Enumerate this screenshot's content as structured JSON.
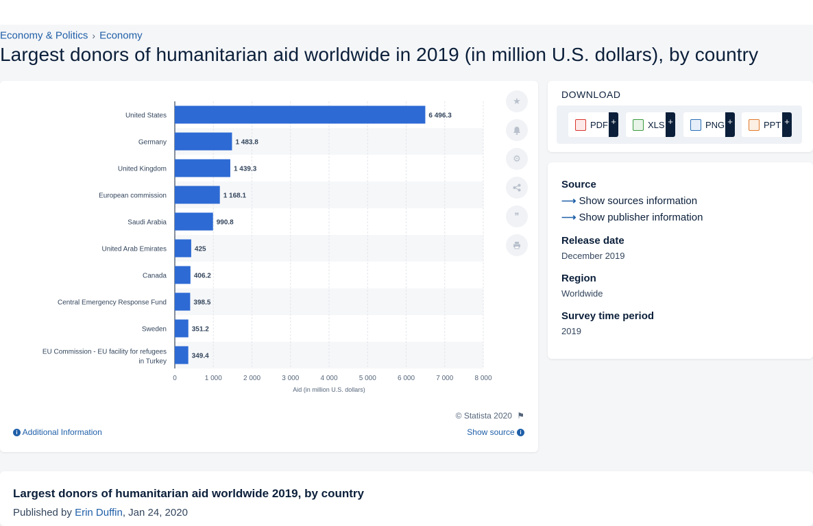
{
  "breadcrumb": {
    "item1": "Economy & Politics",
    "separator": "›",
    "item2": "Economy"
  },
  "page_title": "Largest donors of humanitarian aid worldwide in 2019 (in million U.S. dollars), by country",
  "chart_card": {
    "copyright": "© Statista 2020",
    "additional_info": "Additional Information",
    "show_source": "Show source"
  },
  "download": {
    "title": "DOWNLOAD",
    "buttons": [
      {
        "label": "PDF",
        "plus": "+",
        "icon": "pdf-file-icon",
        "color": "#d9342b"
      },
      {
        "label": "XLS",
        "plus": "+",
        "icon": "xls-file-icon",
        "color": "#3a9a3f"
      },
      {
        "label": "PNG",
        "plus": "+",
        "icon": "png-file-icon",
        "color": "#2a6fb5"
      },
      {
        "label": "PPT",
        "plus": "+",
        "icon": "ppt-file-icon",
        "color": "#e07a2b"
      }
    ]
  },
  "info": {
    "source_label": "Source",
    "sources_link": "Show sources information",
    "publisher_link": "Show publisher information",
    "release_label": "Release date",
    "release_value": "December 2019",
    "region_label": "Region",
    "region_value": "Worldwide",
    "period_label": "Survey time period",
    "period_value": "2019"
  },
  "bottom": {
    "title": "Largest donors of humanitarian aid worldwide 2019, by country",
    "published_prefix": "Published by",
    "author": "Erin Duffin",
    "date": ", Jan 24, 2020"
  },
  "colors": {
    "bar": "#2d6ad4",
    "accent": "#1f5fa8"
  },
  "chart_data": {
    "type": "bar",
    "orientation": "horizontal",
    "categories": [
      "United States",
      "Germany",
      "United Kingdom",
      "European commission",
      "Saudi Arabia",
      "United Arab Emirates",
      "Canada",
      "Central Emergency Response Fund",
      "Sweden",
      "EU Commission - EU facility for refugees in Turkey"
    ],
    "values": [
      6496.3,
      1483.8,
      1439.3,
      1168.1,
      990.8,
      425,
      406.2,
      398.5,
      351.2,
      349.4
    ],
    "value_labels": [
      "6 496.3",
      "1 483.8",
      "1 439.3",
      "1 168.1",
      "990.8",
      "425",
      "406.2",
      "398.5",
      "351.2",
      "349.4"
    ],
    "xlim": [
      0,
      8000
    ],
    "xticks": [
      "0",
      "1 000",
      "2 000",
      "3 000",
      "4 000",
      "5 000",
      "6 000",
      "7 000",
      "8 000"
    ],
    "xlabel": "Aid (in million U.S. dollars)",
    "grid": true
  }
}
